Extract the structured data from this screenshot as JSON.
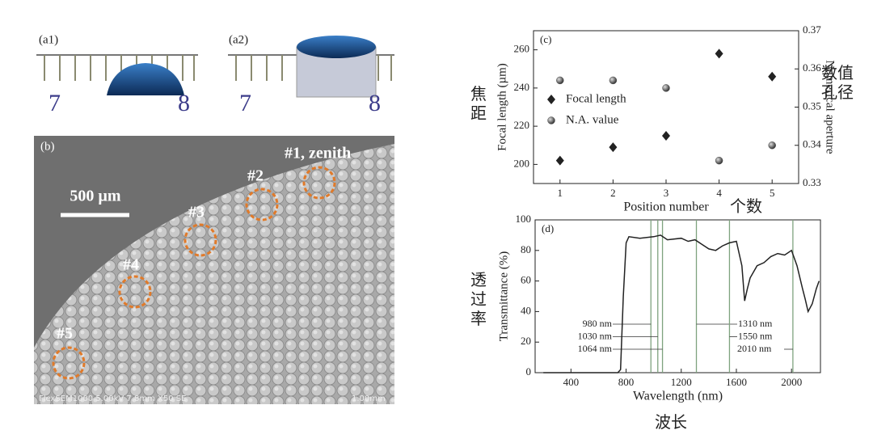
{
  "panels": {
    "a1": {
      "label": "(a1)",
      "ruler_marks": [
        "7",
        "8"
      ]
    },
    "a2": {
      "label": "(a2)",
      "ruler_marks": [
        "7",
        "8"
      ]
    },
    "b": {
      "label": "(b)",
      "scale_bar": "500 µm",
      "sites": [
        "#1, zenith",
        "#2",
        "#3",
        "#4",
        "#5"
      ],
      "footer": "FlexSEM1000 5.00kV 7.8mm X50 SE",
      "footer_scale": "1.00mm"
    }
  },
  "chart_data": [
    {
      "type": "scatter",
      "panel_label": "(c)",
      "x_label": "Position number",
      "y_label": "Focal length (µm)",
      "y2_label": "Numerical aperture",
      "y_label_cn": "焦距",
      "y2_label_cn": "数值孔径",
      "x_label_cn": "个数",
      "x": [
        1,
        2,
        3,
        4,
        5
      ],
      "xlim": [
        0.5,
        5.5
      ],
      "xticks": [
        1,
        2,
        3,
        4,
        5
      ],
      "ylim": [
        190,
        270
      ],
      "yticks": [
        200,
        220,
        240,
        260
      ],
      "y2lim": [
        0.33,
        0.37
      ],
      "y2ticks": [
        0.33,
        0.34,
        0.35,
        0.36,
        0.37
      ],
      "series": [
        {
          "name": "Focal length",
          "marker": "diamond",
          "color": "#222222",
          "values": [
            202,
            209,
            215,
            258,
            246
          ]
        },
        {
          "name": "N.A. value",
          "marker": "circle",
          "color": "#555555",
          "axis": "y2",
          "values": [
            0.357,
            0.357,
            0.355,
            0.336,
            0.34
          ]
        }
      ]
    },
    {
      "type": "line",
      "panel_label": "(d)",
      "x_label": "Wavelength (nm)",
      "y_label": "Transmittance (%)",
      "y_label_cn": "透过率",
      "x_label_cn": "波长",
      "color": "#222222",
      "x": [
        200,
        400,
        600,
        740,
        760,
        780,
        800,
        820,
        900,
        1000,
        1050,
        1100,
        1200,
        1250,
        1300,
        1350,
        1400,
        1450,
        1500,
        1550,
        1600,
        1640,
        1660,
        1680,
        1700,
        1750,
        1800,
        1850,
        1900,
        1950,
        2000,
        2040,
        2080,
        2100,
        2120,
        2150,
        2180,
        2200
      ],
      "values": [
        0,
        0,
        0,
        0,
        2,
        50,
        85,
        89,
        88,
        89,
        90,
        87,
        88,
        86,
        87,
        84,
        81,
        80,
        83,
        85,
        86,
        70,
        47,
        55,
        62,
        70,
        72,
        76,
        78,
        77,
        80,
        70,
        55,
        48,
        40,
        45,
        55,
        60
      ],
      "xlim": [
        140,
        2210
      ],
      "xticks": [
        400,
        800,
        1200,
        1600,
        2000
      ],
      "ylim": [
        0,
        100
      ],
      "yticks": [
        0,
        20,
        40,
        60,
        80,
        100
      ],
      "reference_lines": [
        {
          "value": 980,
          "label": "980 nm"
        },
        {
          "value": 1030,
          "label": "1030 nm"
        },
        {
          "value": 1064,
          "label": "1064 nm"
        },
        {
          "value": 1310,
          "label": "1310 nm"
        },
        {
          "value": 1550,
          "label": "1550 nm"
        },
        {
          "value": 2010,
          "label": "2010 nm"
        }
      ],
      "reference_color": "#7fa37f"
    }
  ]
}
